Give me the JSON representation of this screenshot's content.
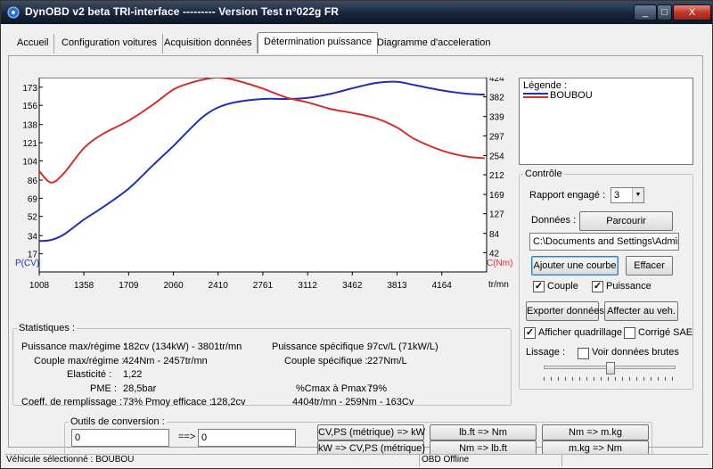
{
  "window": {
    "title": "DynOBD v2 beta TRI-interface --------- Version Test n°022g FR",
    "buttons": {
      "minimize": "_",
      "maximize": "□",
      "close": "X"
    }
  },
  "tabs": [
    "Accueil",
    "Configuration voitures",
    "Acquisition données",
    "Détermination puissance",
    "Diagramme d'acceleration"
  ],
  "chart_data": {
    "type": "line",
    "x": [
      1008,
      1100,
      1200,
      1358,
      1500,
      1709,
      1900,
      2060,
      2200,
      2300,
      2410,
      2550,
      2761,
      2950,
      3112,
      3300,
      3462,
      3650,
      3813,
      3950,
      4164,
      4350,
      4500
    ],
    "x_ticks": [
      1008,
      1358,
      1709,
      2060,
      2410,
      2761,
      3112,
      3462,
      3813,
      4164
    ],
    "x_unit": "tr/mn",
    "left_axis": {
      "label": "P(CV)",
      "ticks": [
        17,
        34,
        52,
        69,
        86,
        104,
        121,
        138,
        156,
        173
      ],
      "ylim": [
        0,
        182
      ],
      "color": "#2030b0"
    },
    "right_axis": {
      "label": "C(Nm)",
      "ticks": [
        42,
        84,
        127,
        169,
        212,
        254,
        297,
        339,
        382,
        424
      ],
      "ylim": [
        0,
        424
      ],
      "color": "#d03030"
    },
    "series": [
      {
        "name": "BOUBOU",
        "axis": "left",
        "color": "#2030b0",
        "values": [
          29,
          30,
          35,
          49,
          60,
          78,
          100,
          118,
          135,
          146,
          154,
          159,
          162,
          162,
          163,
          167,
          172,
          177,
          178,
          175,
          170,
          167,
          166
        ]
      },
      {
        "name": "BOUBOU",
        "axis": "right",
        "color": "#d03030",
        "values": [
          220,
          195,
          215,
          270,
          300,
          330,
          365,
          398,
          413,
          420,
          424,
          418,
          400,
          380,
          370,
          355,
          347,
          335,
          315,
          290,
          265,
          252,
          248
        ]
      }
    ]
  },
  "legend": {
    "title": "Légende :",
    "label": "BOUBOU"
  },
  "statistics": {
    "title": "Statistiques :",
    "puissance_max_label": "Puissance max/régime :",
    "puissance_max_value": "182cv (134kW) - 3801tr/mn",
    "couple_max_label": "Couple max/régime :",
    "couple_max_value": "424Nm - 2457tr/mn",
    "elasticite_label": "Elasticité :",
    "elasticite_value": "1,22",
    "pme_label": "PME :",
    "pme_value": "28,5bar",
    "coeff_label": "Coeff. de remplissage :",
    "coeff_value": "73%",
    "pmoy_label": "Pmoy efficace :",
    "pmoy_value": "128,2cv",
    "puissance_spec_label": "Puissance spécifique :",
    "puissance_spec_value": "97cv/L (71kW/L)",
    "couple_spec_label": "Couple spécifique :",
    "couple_spec_value": "227Nm/L",
    "cmax_label": "%Cmax à Pmax :",
    "cmax_value": "79%",
    "summary": "4404tr/mn - 259Nm - 163Cv"
  },
  "controle": {
    "title": "Contrôle",
    "rapport_label": "Rapport engagé :",
    "rapport_value": "3",
    "donnees_label": "Données :",
    "parcourir": "Parcourir",
    "path": "C:\\Documents and Settings\\Admir",
    "ajouter": "Ajouter une courbe",
    "effacer": "Effacer",
    "couple_label": "Couple",
    "couple_checked": true,
    "puissance_label": "Puissance",
    "puissance_checked": true,
    "exporter": "Exporter données",
    "affecter": "Affecter au veh.",
    "quadrillage_label": "Afficher quadrillage",
    "quadrillage_checked": true,
    "sae_label": "Corrigé SAE",
    "sae_checked": false,
    "lissage_label": "Lissage :",
    "brutes_label": "Voir données brutes",
    "brutes_checked": false
  },
  "conversion": {
    "title": "Outils de conversion :",
    "input1": "0",
    "arrow": "==>",
    "input2": "0",
    "btn_cv_kw": "CV,PS (métrique) => kW",
    "btn_kw_cv": "kW => CV,PS (métrique)",
    "btn_lbft_nm": "lb.ft => Nm",
    "btn_nm_lbft": "Nm => lb.ft",
    "btn_nm_mkg": "Nm => m.kg",
    "btn_mkg_nm": "m.kg => Nm"
  },
  "statusbar": {
    "vehicule": "Véhicule sélectionné : BOUBOU",
    "obd": "OBD Offline"
  }
}
